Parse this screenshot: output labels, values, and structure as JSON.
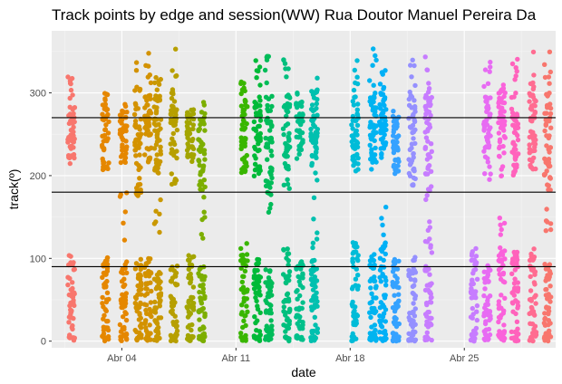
{
  "chart_data": {
    "type": "scatter",
    "title": "Track points by edge and session(WW) Rua Doutor Manuel Pereira Da",
    "xlabel": "date",
    "ylabel": "track(º)",
    "x_ticks": [
      "Abr 04",
      "Abr 11",
      "Abr 18",
      "Abr 25"
    ],
    "x_tick_days": [
      4,
      11,
      18,
      25
    ],
    "y_ticks": [
      0,
      100,
      200,
      300
    ],
    "xlim_days": [
      -0.3,
      30.6
    ],
    "ylim": [
      -8,
      375
    ],
    "grid": true,
    "legend": "none",
    "reference_lines": [
      90,
      180,
      270
    ],
    "session_columns": [
      {
        "day": 0.9,
        "color": "#F8766D",
        "hasTop": true,
        "hasBottom": true,
        "topMax": 325
      },
      {
        "day": 3.0,
        "color": "#E58700",
        "hasTop": true,
        "hasBottom": true,
        "topMax": 300
      },
      {
        "day": 4.1,
        "color": "#E58700",
        "hasTop": true,
        "hasBottom": true,
        "topMax": 285
      },
      {
        "day": 5.0,
        "color": "#D39200",
        "hasTop": true,
        "hasBottom": true,
        "topMax": 340
      },
      {
        "day": 5.6,
        "color": "#D39200",
        "hasTop": true,
        "hasBottom": true,
        "topMax": 358
      },
      {
        "day": 6.2,
        "color": "#C99800",
        "hasTop": true,
        "hasBottom": true,
        "topMax": 320
      },
      {
        "day": 7.2,
        "color": "#B79F00",
        "hasTop": true,
        "hasBottom": true,
        "topMax": 356
      },
      {
        "day": 8.2,
        "color": "#A3A500",
        "hasTop": true,
        "hasBottom": true,
        "topMax": 280
      },
      {
        "day": 8.9,
        "color": "#7CAE00",
        "hasTop": true,
        "hasBottom": true,
        "topMax": 282
      },
      {
        "day": 11.5,
        "color": "#39B600",
        "hasTop": true,
        "hasBottom": true,
        "topMax": 315
      },
      {
        "day": 12.3,
        "color": "#00BA38",
        "hasTop": true,
        "hasBottom": true,
        "topMax": 350
      },
      {
        "day": 13.0,
        "color": "#00BC59",
        "hasTop": true,
        "hasBottom": true,
        "topMax": 345
      },
      {
        "day": 14.1,
        "color": "#00BF7D",
        "hasTop": true,
        "hasBottom": true,
        "topMax": 343
      },
      {
        "day": 14.9,
        "color": "#00C08B",
        "hasTop": true,
        "hasBottom": true,
        "topMax": 300
      },
      {
        "day": 15.8,
        "color": "#00C0AF",
        "hasTop": true,
        "hasBottom": true,
        "topMax": 340
      },
      {
        "day": 18.3,
        "color": "#00BCD8",
        "hasTop": true,
        "hasBottom": true,
        "topMax": 345
      },
      {
        "day": 19.4,
        "color": "#00B4F0",
        "hasTop": true,
        "hasBottom": true,
        "topMax": 355
      },
      {
        "day": 20.0,
        "color": "#00B0F6",
        "hasTop": true,
        "hasBottom": true,
        "topMax": 330
      },
      {
        "day": 20.8,
        "color": "#35A2FF",
        "hasTop": true,
        "hasBottom": true,
        "topMax": 280
      },
      {
        "day": 21.8,
        "color": "#9590FF",
        "hasTop": true,
        "hasBottom": true,
        "topMax": 340
      },
      {
        "day": 22.8,
        "color": "#C77CFF",
        "hasTop": true,
        "hasBottom": true,
        "topMax": 355
      },
      {
        "day": 25.6,
        "color": "#C77CFF",
        "hasTop": false,
        "hasBottom": true,
        "topMax": 0
      },
      {
        "day": 26.4,
        "color": "#E76BF3",
        "hasTop": true,
        "hasBottom": true,
        "topMax": 355
      },
      {
        "day": 27.3,
        "color": "#FA62DB",
        "hasTop": true,
        "hasBottom": true,
        "topMax": 310
      },
      {
        "day": 28.1,
        "color": "#FF62BC",
        "hasTop": true,
        "hasBottom": true,
        "topMax": 358
      },
      {
        "day": 29.2,
        "color": "#FF6C91",
        "hasTop": true,
        "hasBottom": true,
        "topMax": 355
      },
      {
        "day": 30.1,
        "color": "#F8766D",
        "hasTop": true,
        "hasBottom": true,
        "topMax": 355
      }
    ]
  }
}
